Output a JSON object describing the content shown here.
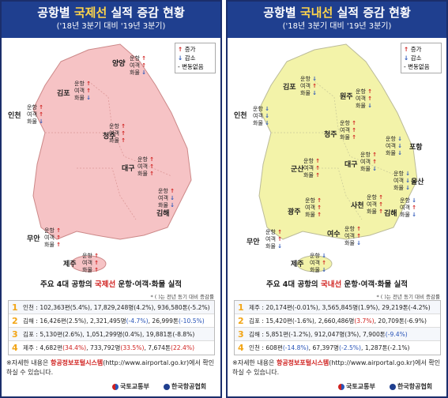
{
  "left": {
    "title_pre": "공항별 ",
    "title_hl": "국제선",
    "title_post": " 실적 증감 현황",
    "subtitle": "('18년 3분기 대비 '19년 3분기)",
    "legend": {
      "up": "증가",
      "down": "감소",
      "none": "- 변동없음"
    },
    "cities": [
      "양양",
      "김포",
      "인천",
      "청주",
      "대구",
      "김해",
      "무안",
      "제주"
    ],
    "ind_labels": [
      "운항",
      "여객",
      "화물"
    ],
    "summary_pre": "주요 4대 공항의 ",
    "summary_hl": "국제선",
    "summary_post": " 운항·여객·화물 실적",
    "summary_note": "* ( )는 전년 동기 대비 증감률",
    "rows": [
      {
        "num": "1",
        "text": "인천 : 102,363편(5.4%), 17,829,248명(4.2%), 936,580톤(-5.2%)"
      },
      {
        "num": "2",
        "a": "김해 : 16,426편(2.5%), 2,321,495명",
        "b": "(-4.7%)",
        "c": ", 26,999톤",
        "d": "(-10.5%)"
      },
      {
        "num": "3",
        "text": "김포 : 5,130편(2.6%), 1,051,299명(0.4%), 19,881톤(-8.8%)"
      },
      {
        "num": "4",
        "a": "제주 : 4,682편",
        "b": "(34.4%)",
        "c": ", 733,792명",
        "d": "(33.5%)",
        "e": ", 7,674톤",
        "f": "(22.4%)"
      }
    ],
    "footer_pre": "※자세한 내용은 ",
    "footer_hl": "항공정보포털시스템",
    "footer_post": "(http://www.airportal.go.kr)에서 확인하실 수 있습니다.",
    "logo1": "국토교통부",
    "logo2": "한국항공협회"
  },
  "right": {
    "title_pre": "공항별 ",
    "title_hl": "국내선",
    "title_post": " 실적 증감 현황",
    "subtitle": "('18년 3분기 대비 '19년 3분기)",
    "legend": {
      "up": "증가",
      "down": "감소",
      "none": "- 변동없음"
    },
    "cities": [
      "김포",
      "원주",
      "인천",
      "청주",
      "포항",
      "군산",
      "대구",
      "울산",
      "광주",
      "사천",
      "김해",
      "무안",
      "여수",
      "제주"
    ],
    "ind_labels": [
      "운항",
      "여객",
      "화물"
    ],
    "summary_pre": "주요 4대 공항의 ",
    "summary_hl": "국내선",
    "summary_post": " 운항·여객·화물 실적",
    "summary_note": "* ( )는 전년 동기 대비 증감률",
    "rows": [
      {
        "num": "1",
        "text": "제주 : 20,174편(-0.01%), 3,565,845명(1.9%), 29,219톤(-4.2%)"
      },
      {
        "num": "2",
        "a": "김포 : 15,420편(-1.6%), 2,660,486명",
        "b": "(3.7%)",
        "c": ", 20,709톤(-6.9%)"
      },
      {
        "num": "3",
        "a": "김해 : 5,851편(-1.2%), 912,047명(3%), 7,900톤",
        "b": "(-9.4%)"
      },
      {
        "num": "4",
        "a": "인천 : 608편",
        "b": "(-14.8%)",
        "c": ", 67,397명",
        "d": "(-2.5%)",
        "e": ", 1,287톤(-2.1%)"
      }
    ],
    "footer_pre": "※자세한 내용은 ",
    "footer_hl": "항공정보포털시스템",
    "footer_post": "(http://www.airportal.go.kr)에서 확인하실 수 있습니다.",
    "logo1": "국토교통부",
    "logo2": "한국항공협회"
  }
}
